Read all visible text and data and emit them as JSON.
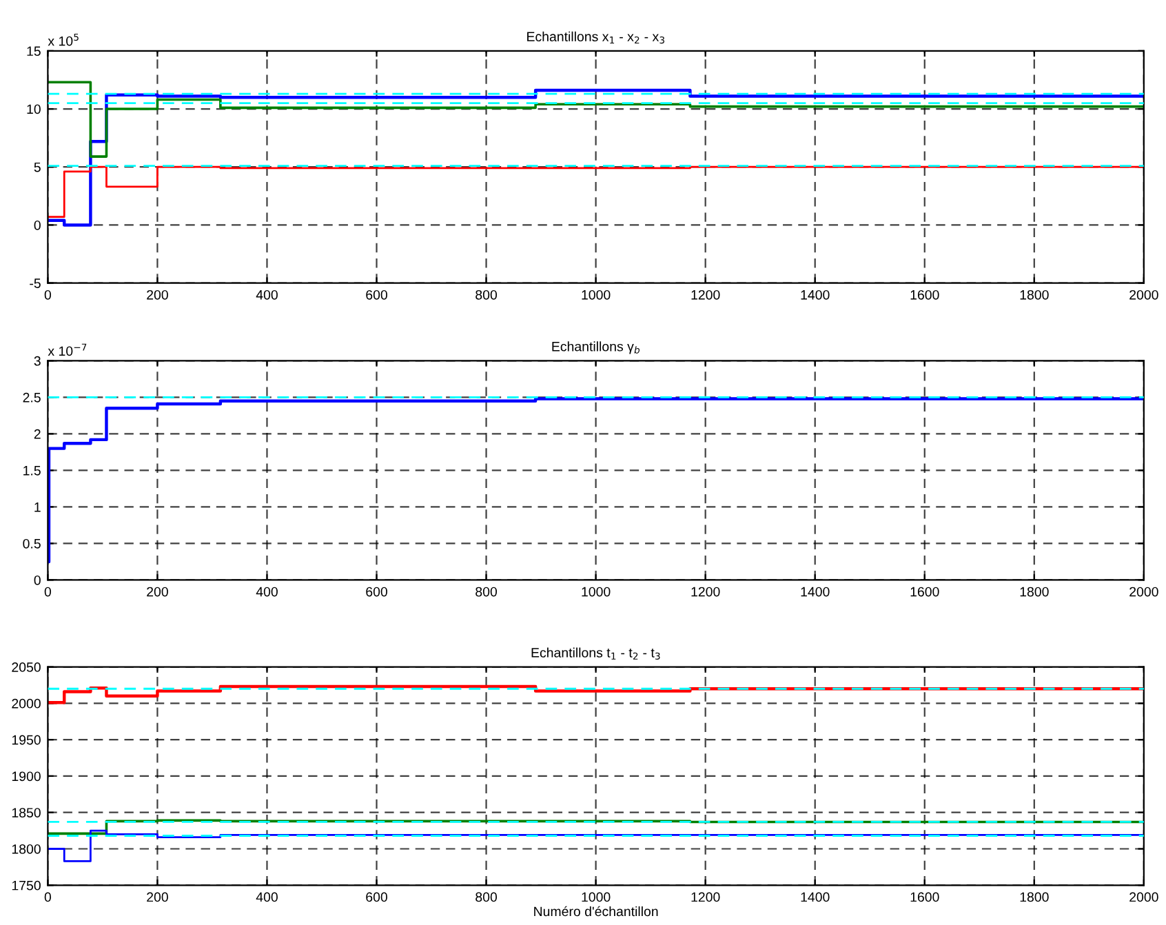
{
  "chart_data": [
    {
      "type": "step",
      "title": "Echantillons x$_{1}$ - x$_{2}$ - x$_{3}$",
      "annotations": [
        "x 10$^{5}$"
      ],
      "xlim": [
        0,
        2000
      ],
      "xticks": [
        0,
        200,
        400,
        600,
        800,
        1000,
        1200,
        1400,
        1600,
        1800,
        2000
      ],
      "ylim": [
        -5,
        15
      ],
      "yticks": [
        -5,
        0,
        5,
        10,
        15
      ],
      "grid": true,
      "line_style": "solid",
      "series": [
        {
          "color": "#0000ff",
          "x": [
            0,
            30,
            78,
            107,
            200,
            315,
            890,
            1172,
            2000
          ],
          "values": [
            0.4,
            0,
            7.2,
            11.2,
            11.1,
            11.0,
            11.6,
            11.1,
            11.1
          ]
        },
        {
          "color": "#008000",
          "x": [
            0,
            78,
            107,
            200,
            315,
            890,
            1172,
            2000
          ],
          "values": [
            12.3,
            5.9,
            10.0,
            10.8,
            10.1,
            10.4,
            10.2,
            10.2
          ]
        },
        {
          "color": "#ff0000",
          "x": [
            0,
            30,
            78,
            107,
            200,
            315,
            1172,
            2000
          ],
          "values": [
            0.7,
            4.6,
            5.0,
            3.3,
            5.0,
            4.9,
            5.0,
            5.0
          ]
        }
      ],
      "ref_lines": [
        {
          "axis": "y",
          "value": 11.3,
          "color": "#00ffff",
          "line_style": "dashed"
        },
        {
          "axis": "y",
          "value": 10.5,
          "color": "#00ffff",
          "line_style": "dashed"
        },
        {
          "axis": "y",
          "value": 5.1,
          "color": "#00ffff",
          "line_style": "dashed"
        }
      ]
    },
    {
      "type": "step",
      "title": "Echantillons γ$_{b}$",
      "annotations": [
        "x 10$^{−7}$"
      ],
      "xlim": [
        0,
        2000
      ],
      "xticks": [
        0,
        200,
        400,
        600,
        800,
        1000,
        1200,
        1400,
        1600,
        1800,
        2000
      ],
      "ylim": [
        0,
        3
      ],
      "yticks": [
        0,
        0.5,
        1,
        1.5,
        2,
        2.5,
        3
      ],
      "grid": true,
      "line_style": "solid",
      "series": [
        {
          "color": "#0000ff",
          "x": [
            0,
            2,
            30,
            78,
            107,
            200,
            315,
            890,
            2000
          ],
          "values": [
            0.25,
            1.8,
            1.87,
            1.92,
            2.35,
            2.41,
            2.45,
            2.48,
            2.48
          ]
        }
      ],
      "ref_lines": [
        {
          "axis": "y",
          "value": 2.5,
          "color": "#00ffff",
          "line_style": "dashed"
        }
      ]
    },
    {
      "type": "step",
      "title": "Echantillons t$_{1}$ - t$_{2}$ - t$_{3}$",
      "xlabel": "Numéro d'échantillon",
      "xlim": [
        0,
        2000
      ],
      "xticks": [
        0,
        200,
        400,
        600,
        800,
        1000,
        1200,
        1400,
        1600,
        1800,
        2000
      ],
      "ylim": [
        1750,
        2050
      ],
      "yticks": [
        1750,
        1800,
        1850,
        1900,
        1950,
        2000,
        2050
      ],
      "grid": true,
      "line_style": "solid",
      "series": [
        {
          "color": "#ff0000",
          "x": [
            0,
            30,
            78,
            107,
            200,
            315,
            890,
            1172,
            2000
          ],
          "values": [
            2001,
            2016,
            2021,
            2010,
            2017,
            2023,
            2017,
            2020,
            2020
          ]
        },
        {
          "color": "#008000",
          "x": [
            0,
            107,
            200,
            315,
            1172,
            2000
          ],
          "values": [
            1821,
            1838,
            1839,
            1838,
            1837,
            1837
          ]
        },
        {
          "color": "#0000ff",
          "x": [
            0,
            30,
            78,
            107,
            200,
            315,
            2000
          ],
          "values": [
            1800,
            1783,
            1825,
            1820,
            1816,
            1819,
            1819
          ]
        }
      ],
      "ref_lines": [
        {
          "axis": "y",
          "value": 2020,
          "color": "#00ffff",
          "line_style": "dashed"
        },
        {
          "axis": "y",
          "value": 1837,
          "color": "#00ffff",
          "line_style": "dashed"
        },
        {
          "axis": "y",
          "value": 1818,
          "color": "#00ffff",
          "line_style": "dashed"
        }
      ]
    }
  ]
}
